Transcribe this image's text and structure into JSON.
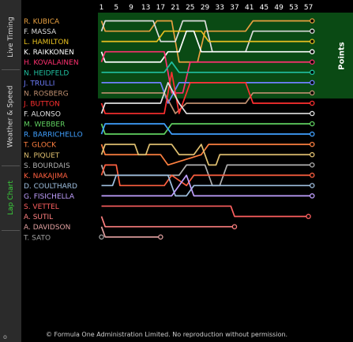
{
  "sidebar": {
    "tabs": [
      {
        "id": "live-timing",
        "label": "Live Timing",
        "active": false
      },
      {
        "id": "weather-speed",
        "label": "Weather & Speed",
        "active": false
      },
      {
        "id": "lap-chart",
        "label": "Lap Chart",
        "active": true
      }
    ],
    "bottom_glyph": "o"
  },
  "points_label": "Points",
  "footer": "© Formula One Administration Limited. No reproduction without permission.",
  "colors": {
    "background": "#000000",
    "sidebar": "#2b2b2b",
    "points_zone": "#0a4a14",
    "active_tab": "#3bd13b"
  },
  "chart_data": {
    "type": "line",
    "title": "",
    "x_ticks": [
      1,
      5,
      9,
      13,
      17,
      21,
      25,
      29,
      33,
      37,
      41,
      45,
      49,
      53,
      57
    ],
    "xlim": [
      1,
      58
    ],
    "ylim": [
      1,
      22
    ],
    "points_positions": 8,
    "drivers": [
      {
        "name": "R. KUBICA",
        "color": "#e8a040",
        "laps": 58,
        "pos": {
          "1": 1,
          "2": 2,
          "14": 2,
          "16": 1,
          "20": 1,
          "22": 5,
          "27": 5,
          "29": 2,
          "40": 2,
          "42": 1,
          "58": 1
        }
      },
      {
        "name": "F. MASSA",
        "color": "#dcdcdc",
        "laps": 58,
        "pos": {
          "1": 2,
          "2": 1,
          "15": 1,
          "17": 3,
          "21": 3,
          "23": 1,
          "29": 1,
          "31": 4,
          "40": 4,
          "42": 2,
          "58": 2
        }
      },
      {
        "name": "L. HAMILTON",
        "color": "#e8c020",
        "laps": 58,
        "pos": {
          "1": 3,
          "2": 3,
          "16": 3,
          "18": 2,
          "28": 2,
          "30": 3,
          "58": 3
        }
      },
      {
        "name": "K. RAIKKONEN",
        "color": "#ffffff",
        "laps": 58,
        "pos": {
          "1": 4,
          "2": 5,
          "17": 5,
          "19": 4,
          "22": 4,
          "24": 2,
          "26": 2,
          "28": 4,
          "58": 4
        }
      },
      {
        "name": "H. KOVALAINEN",
        "color": "#ff3070",
        "laps": 58,
        "pos": {
          "1": 5,
          "2": 4,
          "18": 4,
          "20": 8,
          "23": 8,
          "25": 5,
          "58": 5
        }
      },
      {
        "name": "N. HEIDFELD",
        "color": "#20c0a0",
        "laps": 58,
        "pos": {
          "1": 6,
          "2": 6,
          "18": 6,
          "20": 5,
          "22": 6,
          "58": 6
        }
      },
      {
        "name": "J. TRULLI",
        "color": "#6f7fff",
        "laps": 58,
        "pos": {
          "1": 7,
          "2": 7,
          "17": 7,
          "19": 9,
          "22": 7,
          "58": 7
        }
      },
      {
        "name": "N. ROSBERG",
        "color": "#c09070",
        "laps": 58,
        "pos": {
          "1": 8,
          "2": 8,
          "18": 8,
          "21": 10,
          "24": 9,
          "40": 9,
          "42": 8,
          "58": 8
        }
      },
      {
        "name": "J. BUTTON",
        "color": "#ff3030",
        "laps": 58,
        "pos": {
          "1": 9,
          "2": 10,
          "18": 10,
          "20": 6,
          "22": 10,
          "25": 7,
          "40": 7,
          "42": 9,
          "58": 9
        }
      },
      {
        "name": "F. ALONSO",
        "color": "#e0e0e0",
        "laps": 58,
        "pos": {
          "1": 10,
          "2": 9,
          "17": 9,
          "19": 7,
          "22": 9,
          "24": 10,
          "58": 10
        }
      },
      {
        "name": "M. WEBBER",
        "color": "#60d060",
        "laps": 58,
        "pos": {
          "1": 11,
          "2": 12,
          "18": 12,
          "20": 11,
          "58": 11
        }
      },
      {
        "name": "R. BARRICHELLO",
        "color": "#40a0ff",
        "laps": 58,
        "pos": {
          "1": 12,
          "2": 11,
          "18": 11,
          "20": 12,
          "58": 12
        }
      },
      {
        "name": "T. GLOCK",
        "color": "#ff8040",
        "laps": 58,
        "pos": {
          "1": 13,
          "2": 14,
          "17": 14,
          "19": 15,
          "28": 14,
          "30": 13,
          "58": 13
        }
      },
      {
        "name": "N. PIQUET",
        "color": "#e0c070",
        "laps": 58,
        "pos": {
          "1": 14,
          "2": 13,
          "10": 13,
          "11": 14,
          "13": 14,
          "14": 13,
          "20": 13,
          "22": 14,
          "26": 14,
          "28": 13,
          "30": 15,
          "32": 15,
          "33": 14,
          "58": 14
        }
      },
      {
        "name": "S. BOURDAIS",
        "color": "#b0b0b0",
        "laps": 58,
        "pos": {
          "1": 15,
          "2": 16,
          "22": 16,
          "24": 15,
          "29": 15,
          "31": 17,
          "33": 17,
          "35": 15,
          "58": 15
        }
      },
      {
        "name": "K. NAKAJIMA",
        "color": "#ff6040",
        "laps": 58,
        "pos": {
          "1": 16,
          "2": 15,
          "5": 15,
          "6": 17,
          "18": 17,
          "20": 16,
          "24": 17,
          "26": 16,
          "58": 16
        }
      },
      {
        "name": "D. COULTHARD",
        "color": "#a0c0e0",
        "laps": 58,
        "pos": {
          "1": 17,
          "2": 17,
          "4": 17,
          "5": 16,
          "19": 16,
          "21": 18,
          "24": 18,
          "26": 17,
          "58": 17
        }
      },
      {
        "name": "G. FISICHELLA",
        "color": "#c0a0ff",
        "laps": 58,
        "pos": {
          "1": 18,
          "2": 18,
          "20": 18,
          "22": 17,
          "24": 16,
          "26": 18,
          "58": 18
        }
      },
      {
        "name": "S. VETTEL",
        "color": "#ff6060",
        "laps": 57,
        "pos": {
          "1": 19,
          "2": 19,
          "36": 19,
          "37": 20,
          "56": 20
        }
      },
      {
        "name": "A. SUTIL",
        "color": "#ff8080",
        "laps": 37,
        "pos": {
          "1": 20,
          "2": 21,
          "36": 21
        }
      },
      {
        "name": "A. DAVIDSON",
        "color": "#e0a0a0",
        "laps": 17,
        "pos": {
          "1": 21,
          "2": 22,
          "16": 22
        }
      },
      {
        "name": "T. SATO",
        "color": "#a0a0a0",
        "laps": 1,
        "pos": {
          "1": 22
        }
      }
    ]
  }
}
